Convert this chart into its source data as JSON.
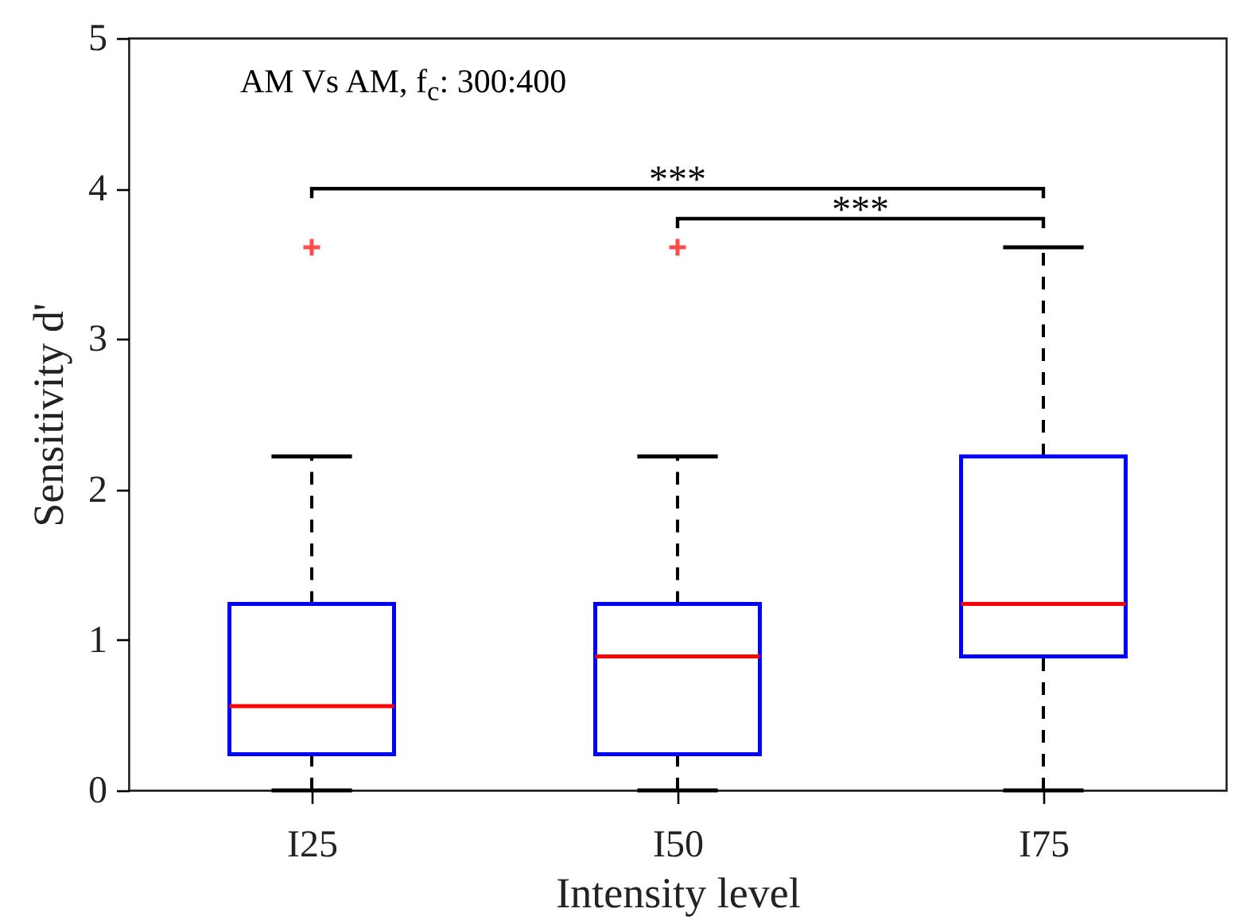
{
  "chart_data": {
    "type": "box",
    "xlabel": "Intensity level",
    "ylabel": "Sensitivity d'",
    "categories": [
      "I25",
      "I50",
      "I75"
    ],
    "ylim": [
      0,
      5
    ],
    "yticks": [
      0,
      1,
      2,
      3,
      4,
      5
    ],
    "boxes": [
      {
        "low": 0,
        "q1": 0.24,
        "median": 0.56,
        "q3": 1.24,
        "high": 2.22,
        "outliers": [
          3.61
        ]
      },
      {
        "low": 0,
        "q1": 0.24,
        "median": 0.89,
        "q3": 1.24,
        "high": 2.22,
        "outliers": [
          3.61
        ]
      },
      {
        "low": 0,
        "q1": 0.89,
        "median": 1.24,
        "q3": 2.22,
        "high": 3.61
      }
    ],
    "annotations": [
      "AM Vs AM, f$_{c}$: 300:400",
      "***",
      "***"
    ]
  }
}
